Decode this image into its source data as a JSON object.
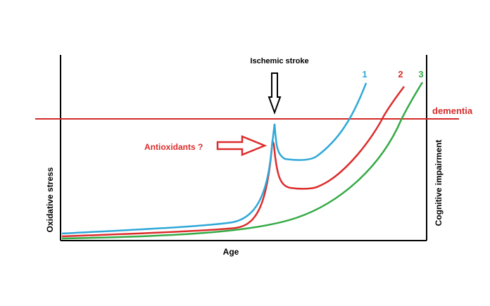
{
  "labels": {
    "event": "Ischemic stroke",
    "threshold": "dementia",
    "intervention": "Antioxidants ?",
    "left_axis": "Oxidative stress",
    "right_axis": "Cognitive impairment",
    "x_axis": "Age"
  },
  "curves": [
    {
      "label": "1",
      "color": "#2fa8d8"
    },
    {
      "label": "2",
      "color": "#dd2c2c"
    },
    {
      "label": "3",
      "color": "#33aa44"
    }
  ],
  "colors": {
    "axis": "#000000",
    "threshold": "#d42a2a",
    "intervention": "#dd2c2c",
    "event_arrow": "#000000"
  }
}
